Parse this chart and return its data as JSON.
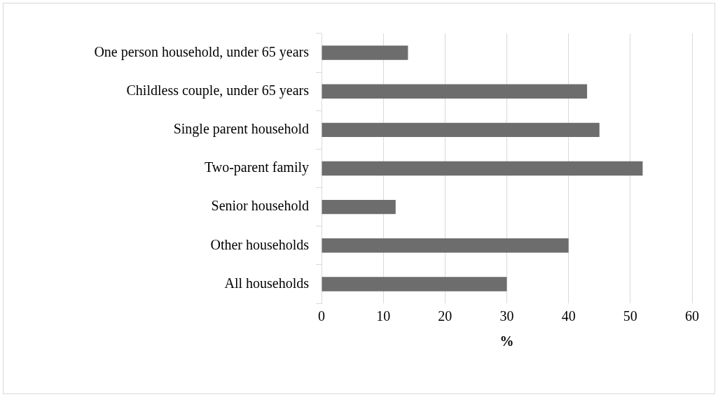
{
  "chart_data": {
    "type": "bar",
    "orientation": "horizontal",
    "xlabel": "%",
    "categories": [
      "One person household, under 65 years",
      "Childless couple, under 65 years",
      "Single parent household",
      "Two-parent family",
      "Senior household",
      "Other households",
      "All households"
    ],
    "values": [
      14,
      43,
      45,
      52,
      12,
      40,
      30
    ],
    "color": "#6d6d6d",
    "xlim": [
      0,
      60
    ],
    "xticks": [
      0,
      10,
      20,
      30,
      40,
      50,
      60
    ],
    "grid": "x"
  }
}
